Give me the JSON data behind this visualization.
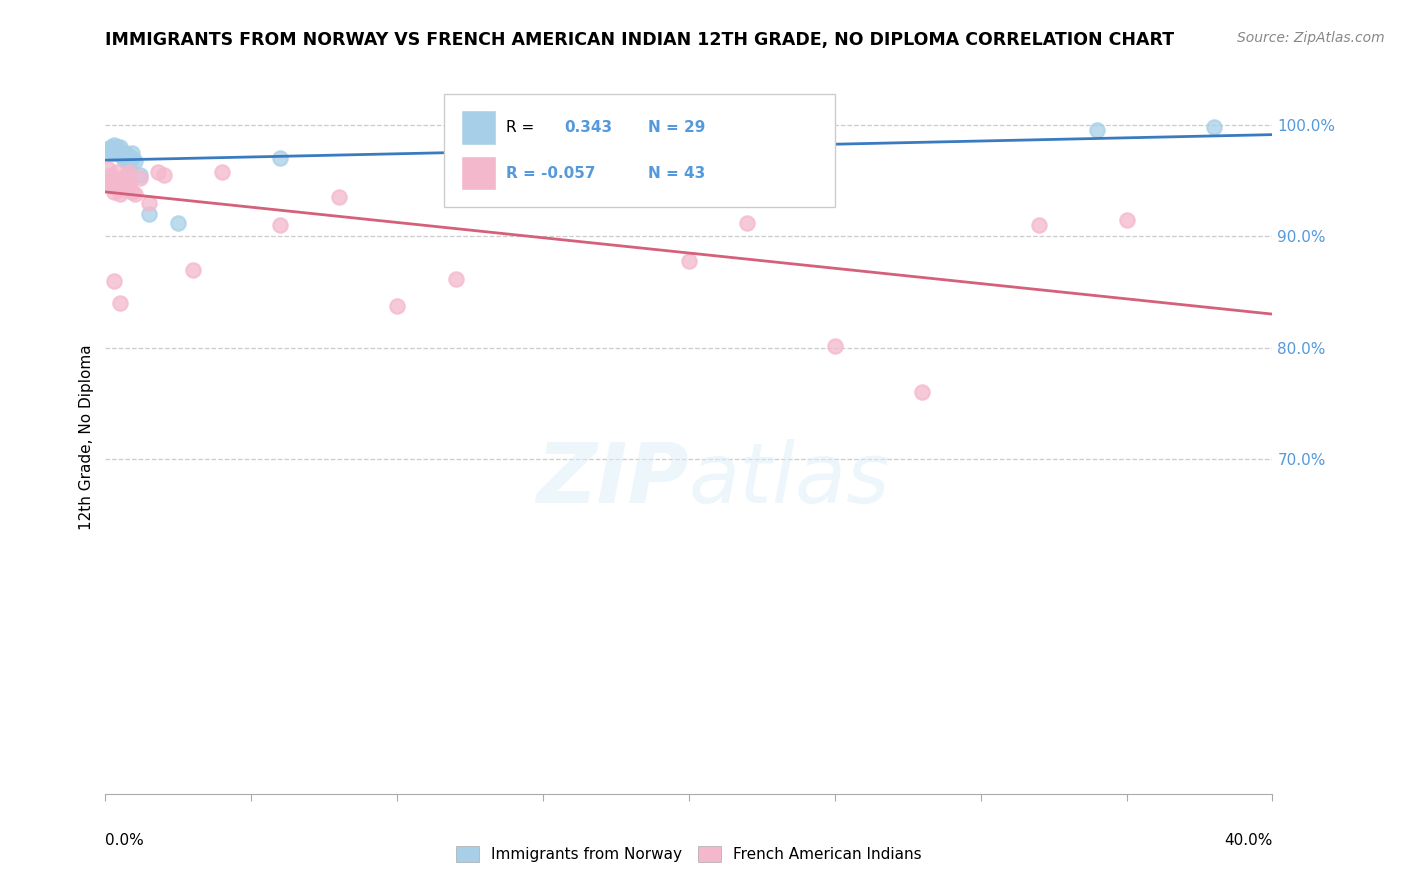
{
  "title": "IMMIGRANTS FROM NORWAY VS FRENCH AMERICAN INDIAN 12TH GRADE, NO DIPLOMA CORRELATION CHART",
  "source": "Source: ZipAtlas.com",
  "ylabel": "12th Grade, No Diploma",
  "blue_color": "#a8cfe8",
  "pink_color": "#f4b8cc",
  "blue_line_color": "#3a7bbf",
  "pink_line_color": "#d4607a",
  "right_axis_color": "#5599dd",
  "norway_x": [
    0.001,
    0.002,
    0.002,
    0.003,
    0.003,
    0.003,
    0.004,
    0.004,
    0.004,
    0.005,
    0.005,
    0.005,
    0.006,
    0.006,
    0.007,
    0.007,
    0.008,
    0.008,
    0.009,
    0.009,
    0.01,
    0.012,
    0.015,
    0.025,
    0.06,
    0.2,
    0.23,
    0.34,
    0.38
  ],
  "norway_y": [
    0.978,
    0.98,
    0.975,
    0.982,
    0.978,
    0.975,
    0.978,
    0.98,
    0.975,
    0.975,
    0.98,
    0.975,
    0.972,
    0.97,
    0.968,
    0.975,
    0.965,
    0.972,
    0.97,
    0.975,
    0.968,
    0.955,
    0.92,
    0.912,
    0.97,
    0.97,
    0.975,
    0.995,
    0.998
  ],
  "french_x": [
    0.001,
    0.001,
    0.002,
    0.002,
    0.002,
    0.003,
    0.003,
    0.003,
    0.003,
    0.004,
    0.004,
    0.004,
    0.005,
    0.005,
    0.005,
    0.006,
    0.006,
    0.007,
    0.007,
    0.008,
    0.008,
    0.009,
    0.01,
    0.012,
    0.015,
    0.018,
    0.02,
    0.03,
    0.04,
    0.06,
    0.08,
    0.1,
    0.12,
    0.15,
    0.2,
    0.22,
    0.25,
    0.28,
    0.32,
    0.35,
    0.003,
    0.005,
    0.008
  ],
  "french_y": [
    0.96,
    0.95,
    0.955,
    0.945,
    0.95,
    0.952,
    0.945,
    0.94,
    0.948,
    0.958,
    0.945,
    0.95,
    0.942,
    0.948,
    0.938,
    0.952,
    0.945,
    0.955,
    0.948,
    0.945,
    0.95,
    0.94,
    0.938,
    0.952,
    0.93,
    0.958,
    0.955,
    0.87,
    0.958,
    0.91,
    0.935,
    0.838,
    0.862,
    0.958,
    0.878,
    0.912,
    0.802,
    0.76,
    0.91,
    0.915,
    0.86,
    0.84,
    0.958
  ],
  "xlim": [
    0.0,
    0.4
  ],
  "ylim": [
    0.4,
    1.04
  ],
  "yticks": [
    0.7,
    0.8,
    0.9,
    1.0
  ],
  "ytick_labels": [
    "70.0%",
    "80.0%",
    "90.0%",
    "100.0%"
  ]
}
